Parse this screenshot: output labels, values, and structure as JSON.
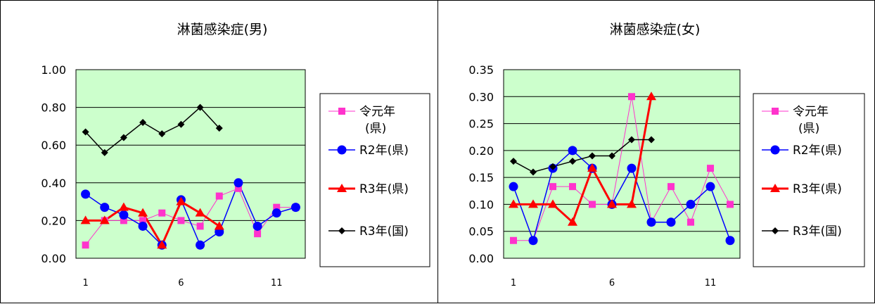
{
  "chart_data": [
    {
      "type": "line",
      "title": "淋菌感染症(男)",
      "xlabel": "",
      "ylabel": "",
      "x": [
        1,
        2,
        3,
        4,
        5,
        6,
        7,
        8,
        9,
        10,
        11,
        12
      ],
      "x_tick_labels": [
        "1",
        "6",
        "11"
      ],
      "y_tick_labels": [
        "1.00",
        "0.80",
        "0.60",
        "0.40",
        "0.20",
        "0.00"
      ],
      "ylim": [
        0,
        1.0
      ],
      "grid": true,
      "plot_background": "#ccffcc",
      "legend_position": "right",
      "series": [
        {
          "name": "令元年 (県)",
          "legend_lines": [
            "令元年",
            "(県)"
          ],
          "color": "#ff33cc",
          "marker": "square",
          "line_width": 1,
          "values": [
            0.07,
            0.2,
            0.2,
            0.2,
            0.24,
            0.2,
            0.17,
            0.33,
            0.37,
            0.13,
            0.27,
            0.27
          ]
        },
        {
          "name": "R2年(県)",
          "legend_lines": [
            "R2年(県)"
          ],
          "color": "#0000ff",
          "marker": "circle",
          "line_width": 1.5,
          "values": [
            0.34,
            0.27,
            0.23,
            0.17,
            0.07,
            0.31,
            0.07,
            0.14,
            0.4,
            0.17,
            0.24,
            0.27
          ]
        },
        {
          "name": "R3年(県)",
          "legend_lines": [
            "R3年(県)"
          ],
          "color": "#ff0000",
          "marker": "triangle",
          "line_width": 3,
          "values": [
            0.2,
            0.2,
            0.27,
            0.24,
            0.07,
            0.3,
            0.24,
            0.17,
            null,
            null,
            null,
            null
          ]
        },
        {
          "name": "R3年(国)",
          "legend_lines": [
            "R3年(国)"
          ],
          "color": "#000000",
          "marker": "diamond",
          "line_width": 1.5,
          "values": [
            0.67,
            0.56,
            0.64,
            0.72,
            0.66,
            0.71,
            0.8,
            0.69,
            null,
            null,
            null,
            null
          ]
        }
      ]
    },
    {
      "type": "line",
      "title": "淋菌感染症(女)",
      "xlabel": "",
      "ylabel": "",
      "x": [
        1,
        2,
        3,
        4,
        5,
        6,
        7,
        8,
        9,
        10,
        11,
        12
      ],
      "x_tick_labels": [
        "1",
        "6",
        "11"
      ],
      "y_tick_labels": [
        "0.35",
        "0.30",
        "0.25",
        "0.20",
        "0.15",
        "0.10",
        "0.05",
        "0.00"
      ],
      "ylim": [
        0,
        0.35
      ],
      "grid": true,
      "plot_background": "#ccffcc",
      "legend_position": "right",
      "series": [
        {
          "name": "令元年 (県)",
          "legend_lines": [
            "令元年",
            "(県)"
          ],
          "color": "#ff33cc",
          "marker": "square",
          "line_width": 1,
          "values": [
            0.033,
            0.033,
            0.133,
            0.133,
            0.1,
            0.1,
            0.3,
            0.067,
            0.133,
            0.067,
            0.167,
            0.1
          ]
        },
        {
          "name": "R2年(県)",
          "legend_lines": [
            "R2年(県)"
          ],
          "color": "#0000ff",
          "marker": "circle",
          "line_width": 1.5,
          "values": [
            0.133,
            0.033,
            0.167,
            0.2,
            0.167,
            0.1,
            0.167,
            0.067,
            0.067,
            0.1,
            0.133,
            0.033
          ]
        },
        {
          "name": "R3年(県)",
          "legend_lines": [
            "R3年(県)"
          ],
          "color": "#ff0000",
          "marker": "triangle",
          "line_width": 3,
          "values": [
            0.1,
            0.1,
            0.1,
            0.067,
            0.167,
            0.1,
            0.1,
            0.3,
            null,
            null,
            null,
            null
          ]
        },
        {
          "name": "R3年(国)",
          "legend_lines": [
            "R3年(国)"
          ],
          "color": "#000000",
          "marker": "diamond",
          "line_width": 1.5,
          "values": [
            0.18,
            0.16,
            0.17,
            0.18,
            0.19,
            0.19,
            0.22,
            0.22,
            null,
            null,
            null,
            null
          ]
        }
      ]
    }
  ]
}
